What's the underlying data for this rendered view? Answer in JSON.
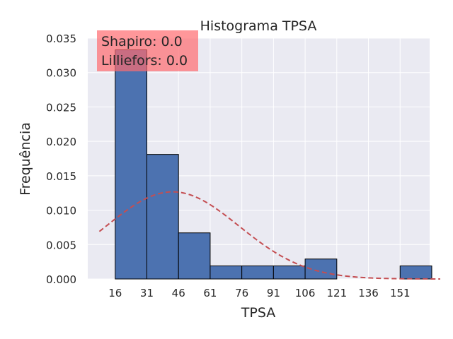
{
  "chart_data": {
    "type": "bar",
    "title": "Histograma TPSA",
    "xlabel": "TPSA",
    "ylabel": "Frequência",
    "xlim": [
      3,
      165
    ],
    "ylim": [
      0,
      0.035
    ],
    "xticks": [
      16,
      31,
      46,
      61,
      76,
      91,
      106,
      121,
      136,
      151
    ],
    "yticks": [
      "0.000",
      "0.005",
      "0.010",
      "0.015",
      "0.020",
      "0.025",
      "0.030",
      "0.035"
    ],
    "bin_edges": [
      16,
      31,
      46,
      61,
      76,
      91,
      106,
      121,
      136,
      151,
      166
    ],
    "values": [
      0.0333,
      0.0181,
      0.0067,
      0.0019,
      0.0019,
      0.0019,
      0.0029,
      0.0,
      0.0,
      0.0019
    ],
    "normal_curve": {
      "mean": 43.2,
      "std": 31.5,
      "x_range": [
        8.5,
        170
      ]
    },
    "grid": true,
    "annotation": {
      "lines": [
        "Shapiro: 0.0",
        "Lilliefors: 0.0"
      ]
    },
    "colors": {
      "bar": "#4c72b0",
      "bar_edge": "#000000",
      "curve": "#c44e52",
      "background": "#eaeaf2",
      "grid": "#ffffff",
      "annotation_box": "#ff6b6f"
    }
  }
}
